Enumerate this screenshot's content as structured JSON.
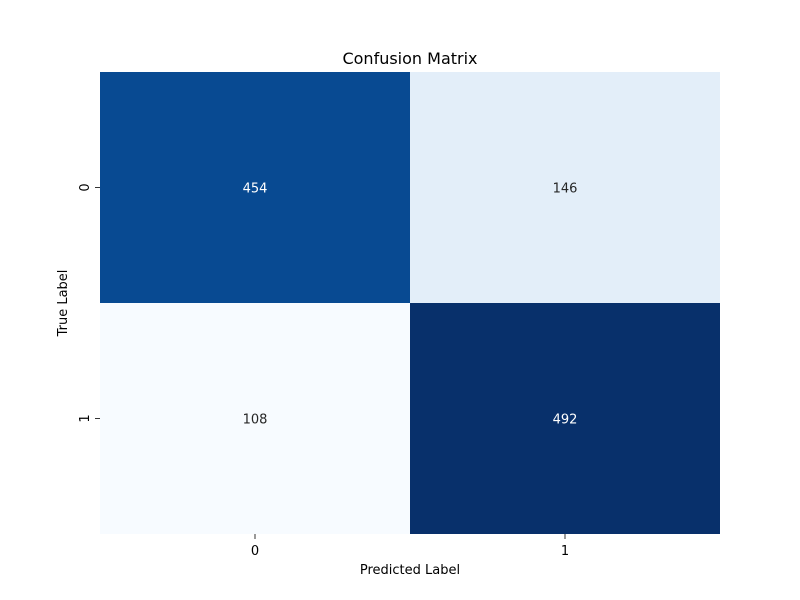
{
  "chart_data": {
    "type": "heatmap",
    "title": "Confusion Matrix",
    "xlabel": "Predicted Label",
    "ylabel": "True Label",
    "x_categories": [
      "0",
      "1"
    ],
    "y_categories": [
      "0",
      "1"
    ],
    "matrix": [
      [
        454,
        146
      ],
      [
        108,
        492
      ]
    ],
    "colormap": "Blues",
    "value_range": [
      108,
      492
    ],
    "colorbar": false,
    "annotations": true
  },
  "colors": {
    "low": "#f7fbff",
    "high": "#08306b",
    "text_dark": "#262626",
    "text_light": "#ffffff"
  }
}
